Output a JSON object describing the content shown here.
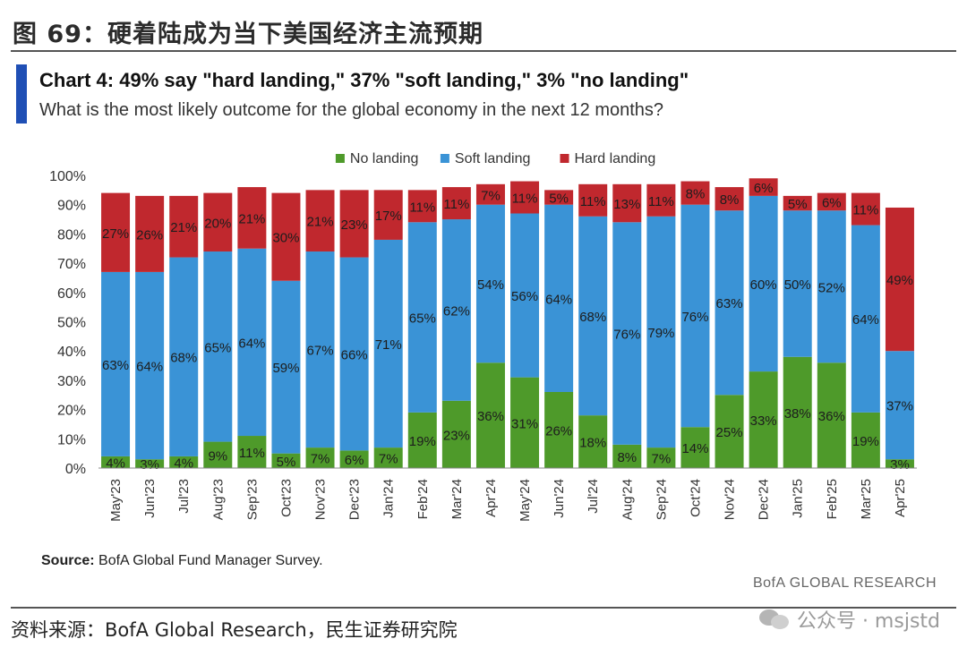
{
  "figure": {
    "title": "图 69：硬着陆成为当下美国经济主流预期",
    "origin": "资料来源：BofA Global Research，民生证券研究院",
    "watermark": "公众号 · msjstd"
  },
  "chart_data": {
    "type": "bar",
    "stacked": true,
    "title": "Chart 4: 49% say \"hard landing,\" 37% \"soft landing,\" 3% \"no landing\"",
    "subtitle": "What is the most likely outcome for the global economy in the next 12 months?",
    "source_label": "Source:",
    "source_text": "BofA Global Fund Manager Survey.",
    "brand": "BofA GLOBAL RESEARCH",
    "xlabel": "",
    "ylabel": "",
    "ylim": [
      0,
      100
    ],
    "yticks": [
      "0%",
      "10%",
      "20%",
      "30%",
      "40%",
      "50%",
      "60%",
      "70%",
      "80%",
      "90%",
      "100%"
    ],
    "grid": false,
    "legend_position": "top",
    "categories": [
      "May'23",
      "Jun'23",
      "Jul'23",
      "Aug'23",
      "Sep'23",
      "Oct'23",
      "Nov'23",
      "Dec'23",
      "Jan'24",
      "Feb'24",
      "Mar'24",
      "Apr'24",
      "May'24",
      "Jun'24",
      "Jul'24",
      "Aug'24",
      "Sep'24",
      "Oct'24",
      "Nov'24",
      "Dec'24",
      "Jan'25",
      "Feb'25",
      "Mar'25",
      "Apr'25"
    ],
    "series": [
      {
        "name": "No landing",
        "color": "#4e9a2a",
        "values": [
          4,
          3,
          4,
          9,
          11,
          5,
          7,
          6,
          7,
          19,
          23,
          36,
          31,
          26,
          18,
          8,
          7,
          14,
          25,
          33,
          38,
          36,
          19,
          3
        ]
      },
      {
        "name": "Soft landing",
        "color": "#3a93d6",
        "values": [
          63,
          64,
          68,
          65,
          64,
          59,
          67,
          66,
          71,
          65,
          62,
          54,
          56,
          64,
          68,
          76,
          79,
          76,
          63,
          60,
          50,
          52,
          64,
          37
        ]
      },
      {
        "name": "Hard landing",
        "color": "#c0282e",
        "values": [
          27,
          26,
          21,
          20,
          21,
          30,
          21,
          23,
          17,
          11,
          11,
          7,
          11,
          5,
          11,
          13,
          11,
          8,
          8,
          6,
          5,
          6,
          11,
          49
        ]
      }
    ],
    "label_suffix": "%"
  }
}
